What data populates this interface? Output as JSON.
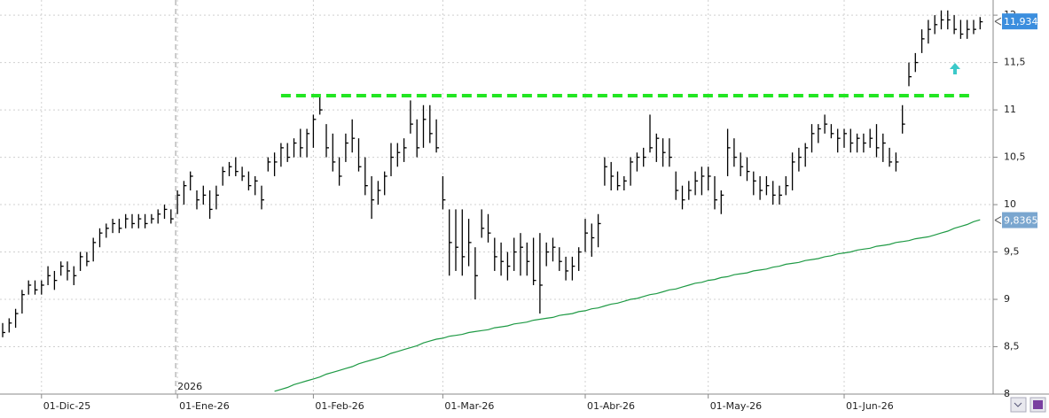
{
  "chart_data": {
    "type": "hlc",
    "categories": [
      null,
      null,
      null,
      null,
      null,
      null,
      "01-Dic-25",
      null,
      null,
      null,
      null,
      null,
      null,
      null,
      null,
      null,
      null,
      null,
      null,
      null,
      null,
      null,
      null,
      null,
      null,
      null,
      null,
      "01-Ene-26",
      null,
      null,
      null,
      null,
      null,
      null,
      null,
      null,
      null,
      null,
      null,
      null,
      null,
      null,
      null,
      null,
      null,
      null,
      null,
      null,
      "01-Feb-26",
      null,
      null,
      null,
      null,
      null,
      null,
      null,
      null,
      null,
      null,
      null,
      null,
      null,
      null,
      null,
      null,
      null,
      null,
      null,
      "01-Mar-26",
      null,
      null,
      null,
      null,
      null,
      null,
      null,
      null,
      null,
      null,
      null,
      null,
      null,
      null,
      null,
      null,
      null,
      null,
      null,
      null,
      null,
      "01-Abr-26",
      null,
      null,
      null,
      null,
      null,
      null,
      null,
      null,
      null,
      null,
      null,
      null,
      null,
      null,
      null,
      null,
      null,
      null,
      "01-May-26",
      null,
      null,
      null,
      null,
      null,
      null,
      null,
      null,
      null,
      null,
      null,
      null,
      null,
      null,
      null,
      null,
      null,
      null,
      null,
      null,
      "01-Jun-26",
      null,
      null,
      null,
      null,
      null,
      null,
      null,
      null,
      null,
      null,
      null,
      null,
      null,
      null,
      null,
      null,
      null,
      null,
      null,
      null,
      null
    ],
    "high": [
      8.75,
      8.8,
      8.9,
      9.1,
      9.2,
      9.2,
      9.2,
      9.35,
      9.3,
      9.4,
      9.4,
      9.35,
      9.5,
      9.5,
      9.65,
      9.75,
      9.8,
      9.85,
      9.85,
      9.9,
      9.9,
      9.9,
      9.9,
      9.9,
      9.95,
      10.0,
      9.95,
      10.15,
      10.25,
      10.35,
      10.15,
      10.2,
      10.15,
      10.2,
      10.4,
      10.45,
      10.5,
      10.4,
      10.35,
      10.3,
      10.2,
      10.5,
      10.55,
      10.65,
      10.65,
      10.7,
      10.8,
      10.8,
      10.95,
      11.15,
      10.85,
      10.75,
      10.5,
      10.75,
      10.9,
      10.7,
      10.5,
      10.3,
      10.25,
      10.35,
      10.65,
      10.65,
      10.7,
      11.1,
      10.9,
      11.05,
      11.05,
      10.9,
      10.3,
      9.95,
      9.95,
      9.95,
      9.85,
      9.55,
      9.95,
      9.9,
      9.65,
      9.6,
      9.5,
      9.65,
      9.7,
      9.6,
      9.65,
      9.7,
      9.6,
      9.65,
      9.55,
      9.45,
      9.45,
      9.55,
      9.85,
      9.8,
      9.9,
      10.5,
      10.45,
      10.35,
      10.3,
      10.5,
      10.55,
      10.6,
      10.95,
      10.75,
      10.7,
      10.7,
      10.35,
      10.2,
      10.25,
      10.35,
      10.4,
      10.4,
      10.3,
      10.15,
      10.8,
      10.7,
      10.55,
      10.5,
      10.35,
      10.3,
      10.3,
      10.25,
      10.2,
      10.3,
      10.55,
      10.6,
      10.65,
      10.85,
      10.85,
      10.95,
      10.85,
      10.8,
      10.8,
      10.8,
      10.75,
      10.75,
      10.8,
      10.85,
      10.75,
      10.6,
      10.55,
      11.05,
      11.5,
      11.6,
      11.85,
      11.95,
      12.0,
      12.05,
      12.05,
      12.0,
      11.95,
      11.95,
      11.95,
      11.98
    ],
    "low": [
      8.6,
      8.65,
      8.7,
      8.85,
      9.05,
      9.05,
      9.05,
      9.15,
      9.1,
      9.25,
      9.2,
      9.15,
      9.3,
      9.35,
      9.4,
      9.55,
      9.65,
      9.7,
      9.7,
      9.75,
      9.75,
      9.75,
      9.75,
      9.8,
      9.8,
      9.85,
      9.8,
      9.9,
      10.0,
      10.15,
      9.95,
      10.0,
      9.85,
      9.95,
      10.2,
      10.3,
      10.3,
      10.25,
      10.15,
      10.1,
      9.95,
      10.35,
      10.3,
      10.4,
      10.45,
      10.5,
      10.5,
      10.5,
      10.6,
      10.95,
      10.5,
      10.35,
      10.2,
      10.45,
      10.55,
      10.35,
      10.1,
      9.85,
      10.0,
      10.1,
      10.3,
      10.4,
      10.45,
      10.75,
      10.5,
      10.6,
      10.65,
      10.55,
      9.95,
      9.25,
      9.3,
      9.25,
      9.35,
      9.0,
      9.65,
      9.6,
      9.3,
      9.25,
      9.2,
      9.3,
      9.25,
      9.25,
      9.15,
      8.85,
      9.35,
      9.4,
      9.3,
      9.2,
      9.2,
      9.3,
      9.5,
      9.45,
      9.55,
      10.2,
      10.15,
      10.15,
      10.15,
      10.2,
      10.35,
      10.4,
      10.55,
      10.45,
      10.4,
      10.4,
      10.05,
      9.95,
      10.05,
      10.1,
      10.1,
      10.15,
      9.95,
      9.9,
      10.3,
      10.4,
      10.3,
      10.25,
      10.1,
      10.05,
      10.1,
      10.0,
      10.0,
      10.1,
      10.15,
      10.35,
      10.4,
      10.55,
      10.65,
      10.75,
      10.7,
      10.55,
      10.6,
      10.55,
      10.55,
      10.55,
      10.6,
      10.5,
      10.45,
      10.4,
      10.35,
      10.75,
      11.25,
      11.4,
      11.6,
      11.7,
      11.8,
      11.85,
      11.85,
      11.8,
      11.75,
      11.75,
      11.8,
      11.85
    ],
    "close": [
      8.65,
      8.75,
      8.85,
      9.05,
      9.15,
      9.1,
      9.15,
      9.25,
      9.2,
      9.35,
      9.3,
      9.25,
      9.45,
      9.4,
      9.6,
      9.7,
      9.75,
      9.8,
      9.75,
      9.85,
      9.8,
      9.85,
      9.8,
      9.85,
      9.9,
      9.95,
      9.85,
      10.1,
      10.2,
      10.3,
      10.05,
      10.1,
      9.95,
      10.1,
      10.35,
      10.4,
      10.35,
      10.3,
      10.2,
      10.25,
      10.05,
      10.45,
      10.45,
      10.6,
      10.5,
      10.65,
      10.6,
      10.75,
      10.9,
      11.0,
      10.6,
      10.45,
      10.3,
      10.65,
      10.7,
      10.4,
      10.2,
      10.05,
      10.15,
      10.3,
      10.5,
      10.55,
      10.6,
      10.85,
      10.6,
      10.9,
      10.75,
      10.6,
      10.05,
      9.6,
      9.55,
      9.45,
      9.6,
      9.25,
      9.75,
      9.7,
      9.45,
      9.4,
      9.35,
      9.5,
      9.55,
      9.4,
      9.2,
      9.15,
      9.5,
      9.55,
      9.4,
      9.3,
      9.35,
      9.5,
      9.7,
      9.65,
      9.8,
      10.4,
      10.3,
      10.2,
      10.25,
      10.45,
      10.5,
      10.5,
      10.6,
      10.7,
      10.55,
      10.5,
      10.15,
      10.05,
      10.15,
      10.25,
      10.3,
      10.3,
      10.05,
      10.1,
      10.6,
      10.5,
      10.4,
      10.35,
      10.25,
      10.15,
      10.2,
      10.1,
      10.1,
      10.2,
      10.45,
      10.5,
      10.6,
      10.75,
      10.8,
      10.85,
      10.75,
      10.7,
      10.75,
      10.65,
      10.7,
      10.65,
      10.7,
      10.6,
      10.65,
      10.45,
      10.45,
      10.85,
      11.35,
      11.5,
      11.75,
      11.85,
      11.9,
      11.95,
      11.95,
      11.85,
      11.8,
      11.85,
      11.85,
      11.93
    ],
    "bar_color": "#000000",
    "ma": {
      "color": "#1f9a45",
      "values": [
        null,
        null,
        null,
        null,
        null,
        null,
        null,
        null,
        null,
        null,
        null,
        null,
        null,
        null,
        null,
        null,
        null,
        null,
        null,
        null,
        null,
        null,
        null,
        null,
        null,
        null,
        null,
        null,
        null,
        null,
        null,
        null,
        null,
        null,
        null,
        null,
        null,
        null,
        null,
        null,
        null,
        null,
        8.03,
        8.05,
        8.07,
        8.1,
        8.12,
        8.14,
        8.16,
        8.18,
        8.21,
        8.23,
        8.25,
        8.27,
        8.29,
        8.32,
        8.34,
        8.36,
        8.38,
        8.4,
        8.43,
        8.45,
        8.47,
        8.49,
        8.51,
        8.54,
        8.56,
        8.58,
        8.59,
        8.61,
        8.62,
        8.63,
        8.65,
        8.66,
        8.67,
        8.68,
        8.7,
        8.71,
        8.72,
        8.74,
        8.75,
        8.76,
        8.78,
        8.79,
        8.8,
        8.81,
        8.83,
        8.84,
        8.85,
        8.87,
        8.88,
        8.9,
        8.91,
        8.93,
        8.95,
        8.96,
        8.98,
        9.0,
        9.01,
        9.03,
        9.05,
        9.06,
        9.08,
        9.1,
        9.11,
        9.13,
        9.15,
        9.17,
        9.18,
        9.2,
        9.21,
        9.23,
        9.24,
        9.26,
        9.27,
        9.28,
        9.3,
        9.31,
        9.32,
        9.34,
        9.35,
        9.37,
        9.38,
        9.39,
        9.41,
        9.42,
        9.43,
        9.45,
        9.46,
        9.48,
        9.49,
        9.5,
        9.52,
        9.53,
        9.54,
        9.56,
        9.57,
        9.58,
        9.6,
        9.61,
        9.62,
        9.64,
        9.65,
        9.66,
        9.68,
        9.7,
        9.72,
        9.75,
        9.77,
        9.79,
        9.82,
        9.84
      ]
    },
    "resistance": {
      "value": 11.15,
      "color": "#22e622"
    },
    "price_labels": [
      {
        "value": 11.934,
        "label": "11,934",
        "color": "#3b8ede"
      },
      {
        "value": 9.8365,
        "label": "9,8365",
        "color": "#7aa6cf"
      }
    ],
    "year_label": "2026",
    "ylim": [
      8,
      12.16
    ],
    "yticks": [
      {
        "value": 8,
        "label": "8"
      },
      {
        "value": 8.5,
        "label": "8,5"
      },
      {
        "value": 9,
        "label": "9"
      },
      {
        "value": 9.5,
        "label": "9,5"
      },
      {
        "value": 10,
        "label": "10"
      },
      {
        "value": 10.5,
        "label": "10,5"
      },
      {
        "value": 11,
        "label": "11"
      },
      {
        "value": 11.5,
        "label": "11,5"
      },
      {
        "value": 12,
        "label": "12"
      }
    ],
    "grid": true
  }
}
